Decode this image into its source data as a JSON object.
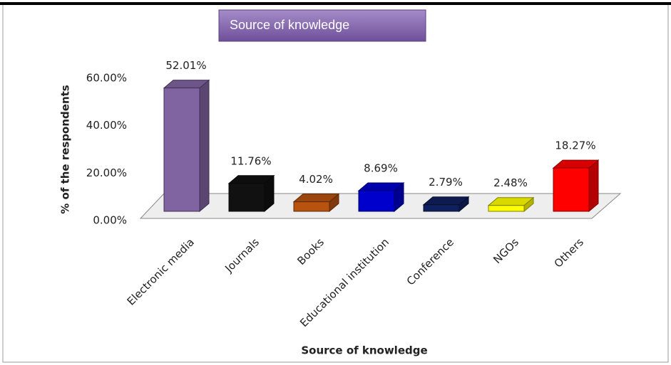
{
  "chart_data": {
    "type": "bar3d",
    "title": "Source of knowledge",
    "x_label": "Source of knowledge",
    "y_label": "% of the respondents",
    "categories": [
      "Electronic media",
      "Journals",
      "Books",
      "Educational institution",
      "Conference",
      "NGOs",
      "Others"
    ],
    "values": [
      52.01,
      11.76,
      4.02,
      8.69,
      2.79,
      2.48,
      18.27
    ],
    "value_labels": [
      "52.01%",
      "11.76%",
      "4.02%",
      "8.69%",
      "2.79%",
      "2.48%",
      "18.27%"
    ],
    "colors": [
      "#8064a2",
      "#111111",
      "#b8520f",
      "#0000cc",
      "#10205e",
      "#ffff00",
      "#ff0000"
    ],
    "ylim": [
      0,
      60
    ],
    "yticks": [
      {
        "value": 0,
        "label": "0.00%"
      },
      {
        "value": 20,
        "label": "20.00%"
      },
      {
        "value": 40,
        "label": "40.00%"
      },
      {
        "value": 60,
        "label": "60.00%"
      }
    ]
  }
}
